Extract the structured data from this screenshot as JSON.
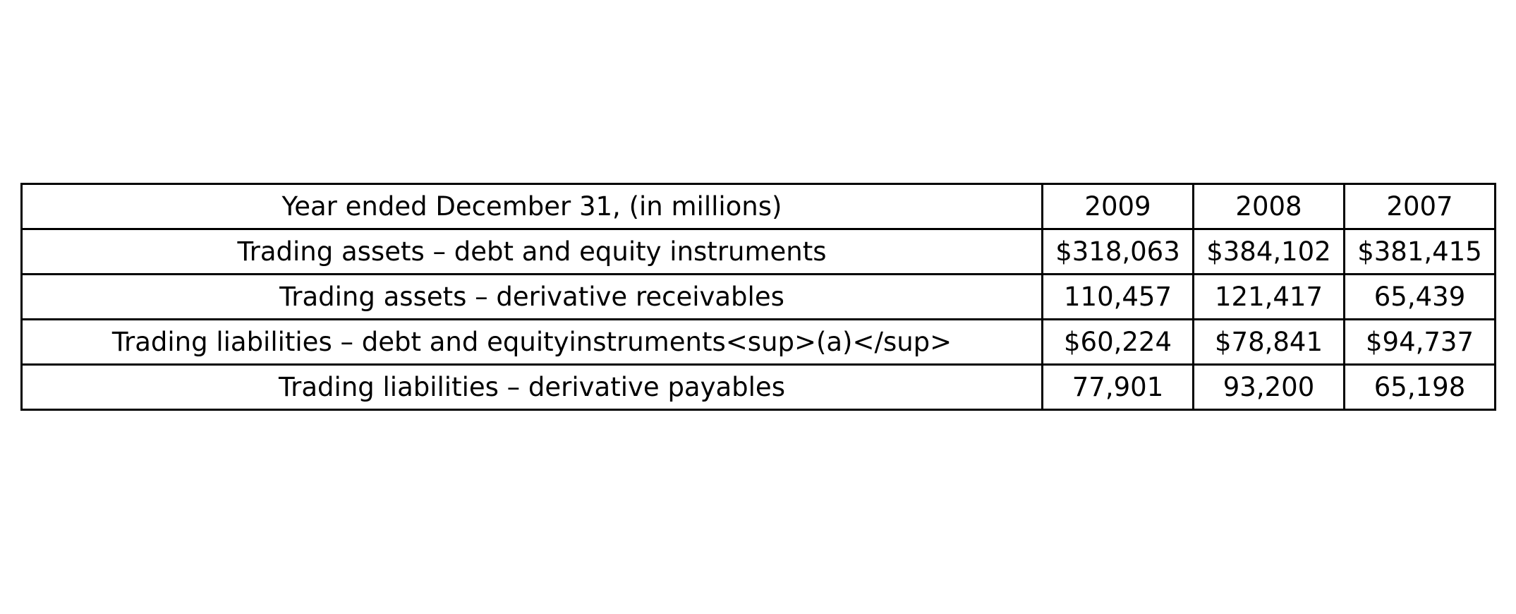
{
  "chart_data": {
    "type": "table",
    "columns": [
      "Year ended December 31, (in millions)",
      "2009",
      "2008",
      "2007"
    ],
    "rows": [
      [
        "Trading assets – debt and equity instruments",
        "$318,063",
        "$384,102",
        "$381,415"
      ],
      [
        "Trading assets – derivative receivables",
        "110,457",
        "121,417",
        "65,439"
      ],
      [
        "Trading liabilities – debt and equityinstruments<sup>(a)</sup>",
        "$60,224",
        "$78,841",
        "$94,737"
      ],
      [
        "Trading liabilities – derivative payables",
        "77,901",
        "93,200",
        "65,198"
      ]
    ]
  }
}
